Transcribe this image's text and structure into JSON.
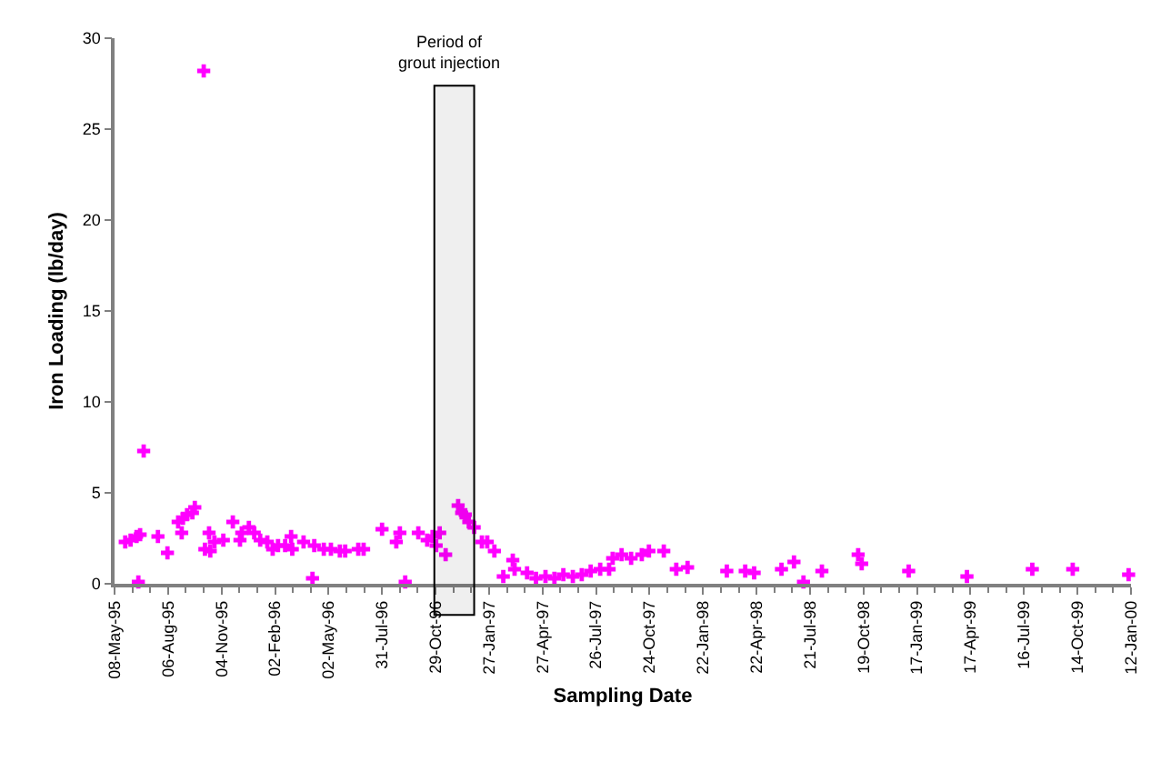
{
  "chart_data": {
    "type": "scatter",
    "xlabel": "Sampling Date",
    "ylabel": "Iron Loading (lb/day)",
    "marker": "cross",
    "ylim": [
      0,
      30
    ],
    "yticks": [
      0,
      5,
      10,
      15,
      20,
      25,
      30
    ],
    "xlim": [
      "1995-05-08",
      "2000-01-12"
    ],
    "xticks": [
      {
        "value": "1995-05-08",
        "label": "08-May-95"
      },
      {
        "value": "1995-08-06",
        "label": "06-Aug-95"
      },
      {
        "value": "1995-11-04",
        "label": "04-Nov-95"
      },
      {
        "value": "1996-02-02",
        "label": "02-Feb-96"
      },
      {
        "value": "1996-05-02",
        "label": "02-May-96"
      },
      {
        "value": "1996-07-31",
        "label": "31-Jul-96"
      },
      {
        "value": "1996-10-29",
        "label": "29-Oct-96"
      },
      {
        "value": "1997-01-27",
        "label": "27-Jan-97"
      },
      {
        "value": "1997-04-27",
        "label": "27-Apr-97"
      },
      {
        "value": "1997-07-26",
        "label": "26-Jul-97"
      },
      {
        "value": "1997-10-24",
        "label": "24-Oct-97"
      },
      {
        "value": "1998-01-22",
        "label": "22-Jan-98"
      },
      {
        "value": "1998-04-22",
        "label": "22-Apr-98"
      },
      {
        "value": "1998-07-21",
        "label": "21-Jul-98"
      },
      {
        "value": "1998-10-19",
        "label": "19-Oct-98"
      },
      {
        "value": "1999-01-17",
        "label": "17-Jan-99"
      },
      {
        "value": "1999-04-17",
        "label": "17-Apr-99"
      },
      {
        "value": "1999-07-16",
        "label": "16-Jul-99"
      },
      {
        "value": "1999-10-14",
        "label": "14-Oct-99"
      },
      {
        "value": "2000-01-12",
        "label": "12-Jan-00"
      }
    ],
    "bands": [
      {
        "axis": "x",
        "from": "1996-10-27",
        "to": "1997-01-02",
        "label": "Period of\ngrout injection",
        "color": "#000000"
      }
    ],
    "series": [
      {
        "color": "#ff00ff",
        "x": [
          "1995-05-26",
          "1995-06-04",
          "1995-06-14",
          "1995-06-17",
          "1995-06-20",
          "1995-06-26",
          "1995-07-20",
          "1995-08-05",
          "1995-08-23",
          "1995-08-29",
          "1995-08-31",
          "1995-09-07",
          "1995-09-16",
          "1995-09-20",
          "1995-10-05",
          "1995-10-07",
          "1995-10-14",
          "1995-10-16",
          "1995-10-23",
          "1995-11-07",
          "1995-11-23",
          "1995-12-05",
          "1995-12-08",
          "1995-12-20",
          "1995-12-29",
          "1996-01-08",
          "1996-01-20",
          "1996-01-29",
          "1996-02-07",
          "1996-02-19",
          "1996-02-29",
          "1996-03-02",
          "1996-03-21",
          "1996-04-05",
          "1996-04-08",
          "1996-04-24",
          "1996-05-06",
          "1996-05-21",
          "1996-05-30",
          "1996-06-21",
          "1996-06-30",
          "1996-07-31",
          "1996-08-24",
          "1996-08-30",
          "1996-09-08",
          "1996-09-30",
          "1996-10-15",
          "1996-10-24",
          "1996-10-30",
          "1996-11-05",
          "1996-11-15",
          "1996-12-06",
          "1996-12-12",
          "1996-12-18",
          "1996-12-24",
          "1997-01-02",
          "1997-01-15",
          "1997-01-24",
          "1997-02-05",
          "1997-02-20",
          "1997-03-08",
          "1997-03-11",
          "1997-04-01",
          "1997-04-16",
          "1997-05-02",
          "1997-05-17",
          "1997-06-01",
          "1997-06-17",
          "1997-07-02",
          "1997-07-17",
          "1997-08-02",
          "1997-08-17",
          "1997-08-23",
          "1997-09-07",
          "1997-09-23",
          "1997-10-11",
          "1997-10-23",
          "1997-11-17",
          "1997-12-08",
          "1997-12-27",
          "1998-03-03",
          "1998-04-03",
          "1998-04-18",
          "1998-06-03",
          "1998-06-24",
          "1998-07-10",
          "1998-08-10",
          "1998-10-10",
          "1998-10-16",
          "1999-01-03",
          "1999-04-11",
          "1999-07-30",
          "1999-10-06",
          "2000-01-08"
        ],
        "values": [
          2.3,
          2.4,
          2.6,
          0.1,
          2.7,
          7.3,
          2.6,
          1.7,
          3.4,
          2.8,
          3.6,
          3.8,
          3.9,
          4.2,
          28.2,
          1.9,
          2.8,
          1.8,
          2.3,
          2.4,
          3.4,
          2.4,
          2.8,
          3.1,
          2.8,
          2.4,
          2.3,
          1.9,
          2.1,
          2.1,
          2.6,
          1.9,
          2.3,
          0.3,
          2.1,
          1.9,
          1.9,
          1.8,
          1.8,
          1.9,
          1.9,
          3.0,
          2.3,
          2.8,
          0.1,
          2.8,
          2.4,
          2.6,
          2.1,
          2.8,
          1.6,
          4.3,
          3.9,
          3.8,
          3.4,
          3.1,
          2.3,
          2.3,
          1.8,
          0.4,
          1.3,
          0.8,
          0.6,
          0.3,
          0.4,
          0.3,
          0.5,
          0.4,
          0.5,
          0.7,
          0.8,
          0.8,
          1.4,
          1.6,
          1.4,
          1.6,
          1.8,
          1.8,
          0.8,
          0.9,
          0.7,
          0.7,
          0.6,
          0.8,
          1.2,
          0.1,
          0.7,
          1.6,
          1.1,
          0.7,
          0.4,
          0.8,
          0.8,
          0.5
        ]
      }
    ]
  }
}
